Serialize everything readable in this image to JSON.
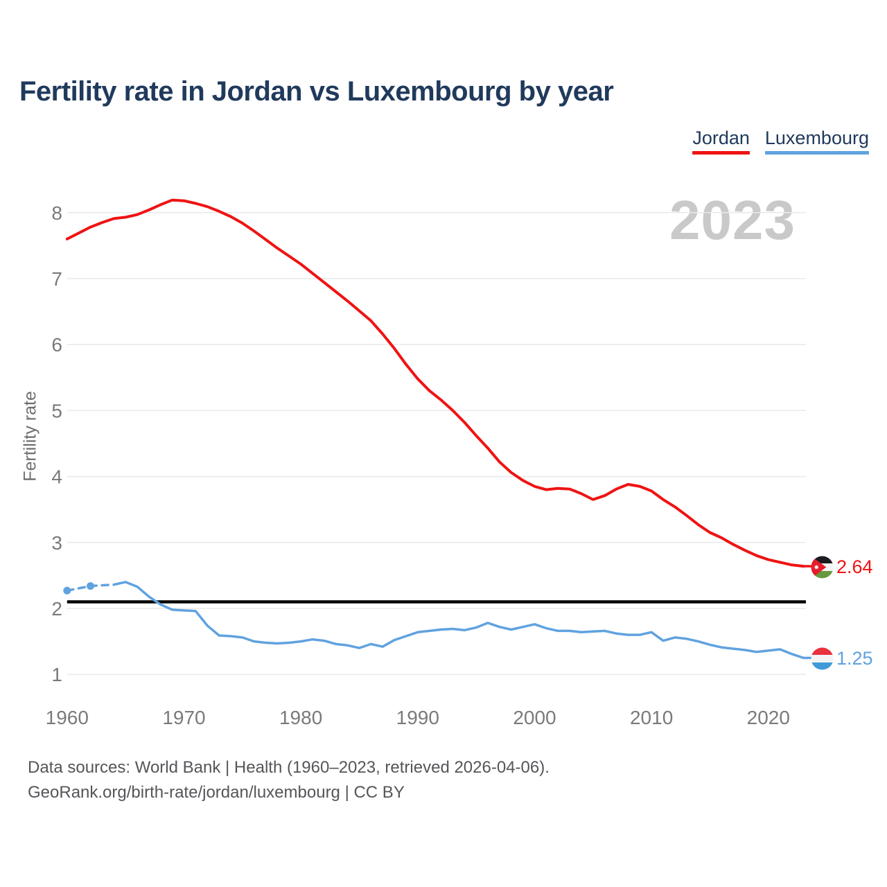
{
  "title": "Fertility rate in Jordan vs Luxembourg by year",
  "watermark_year": "2023",
  "legend": {
    "items": [
      {
        "label": "Jordan",
        "color": "#ef1313"
      },
      {
        "label": "Luxembourg",
        "color": "#60a2df"
      }
    ]
  },
  "end_labels": {
    "jordan": {
      "value": "2.64",
      "color": "#ef1313",
      "flag": "jordan-flag"
    },
    "luxembourg": {
      "value": "1.25",
      "color": "#60a2df",
      "flag": "luxembourg-flag"
    }
  },
  "footer": {
    "line1": "Data sources: World Bank | Health (1960–2023, retrieved 2026-04-06).",
    "line2": "GeoRank.org/birth-rate/jordan/luxembourg | CC BY"
  },
  "chart_data": {
    "type": "line",
    "title": "Fertility rate in Jordan vs Luxembourg by year",
    "xlabel": "",
    "ylabel": "Fertility rate",
    "x_ticks": [
      1960,
      1970,
      1980,
      1990,
      2000,
      2010,
      2020
    ],
    "y_ticks": [
      1,
      2,
      3,
      4,
      5,
      6,
      7,
      8
    ],
    "xlim": [
      1960,
      2023
    ],
    "ylim": [
      0.6,
      8.7
    ],
    "grid": "horizontal",
    "legend_position": "top-right",
    "annotations": {
      "replacement_rate_line": 2.1,
      "highlight_year": "2023"
    },
    "years": [
      1960,
      1961,
      1962,
      1963,
      1964,
      1965,
      1966,
      1967,
      1968,
      1969,
      1970,
      1971,
      1972,
      1973,
      1974,
      1975,
      1976,
      1977,
      1978,
      1979,
      1980,
      1981,
      1982,
      1983,
      1984,
      1985,
      1986,
      1987,
      1988,
      1989,
      1990,
      1991,
      1992,
      1993,
      1994,
      1995,
      1996,
      1997,
      1998,
      1999,
      2000,
      2001,
      2002,
      2003,
      2004,
      2005,
      2006,
      2007,
      2008,
      2009,
      2010,
      2011,
      2012,
      2013,
      2014,
      2015,
      2016,
      2017,
      2018,
      2019,
      2020,
      2021,
      2022,
      2023
    ],
    "series": [
      {
        "name": "Jordan",
        "color": "#ef1313",
        "end_value": 2.64,
        "values": [
          7.6,
          7.69,
          7.78,
          7.85,
          7.91,
          7.93,
          7.97,
          8.04,
          8.12,
          8.19,
          8.18,
          8.14,
          8.09,
          8.02,
          7.94,
          7.84,
          7.72,
          7.59,
          7.46,
          7.34,
          7.22,
          7.08,
          6.94,
          6.8,
          6.66,
          6.51,
          6.36,
          6.16,
          5.94,
          5.7,
          5.48,
          5.3,
          5.16,
          5.0,
          4.82,
          4.62,
          4.43,
          4.22,
          4.06,
          3.94,
          3.85,
          3.8,
          3.82,
          3.81,
          3.74,
          3.65,
          3.71,
          3.81,
          3.88,
          3.85,
          3.78,
          3.65,
          3.54,
          3.41,
          3.27,
          3.15,
          3.07,
          2.97,
          2.88,
          2.8,
          2.74,
          2.7,
          2.66,
          2.64
        ]
      },
      {
        "name": "Luxembourg",
        "color": "#60a2df",
        "end_value": 1.25,
        "dashed_through_year": 1964,
        "marker_years": [
          1960,
          1962
        ],
        "values": [
          2.27,
          null,
          2.34,
          null,
          2.36,
          2.4,
          2.33,
          2.18,
          2.06,
          1.98,
          1.97,
          1.96,
          1.74,
          1.59,
          1.58,
          1.56,
          1.5,
          1.48,
          1.47,
          1.48,
          1.5,
          1.53,
          1.51,
          1.46,
          1.44,
          1.4,
          1.46,
          1.42,
          1.52,
          1.58,
          1.64,
          1.66,
          1.68,
          1.69,
          1.67,
          1.71,
          1.78,
          1.72,
          1.68,
          1.72,
          1.76,
          1.7,
          1.66,
          1.66,
          1.64,
          1.65,
          1.66,
          1.62,
          1.6,
          1.6,
          1.64,
          1.51,
          1.56,
          1.54,
          1.5,
          1.45,
          1.41,
          1.39,
          1.37,
          1.34,
          1.36,
          1.38,
          1.31,
          1.25
        ]
      }
    ]
  }
}
